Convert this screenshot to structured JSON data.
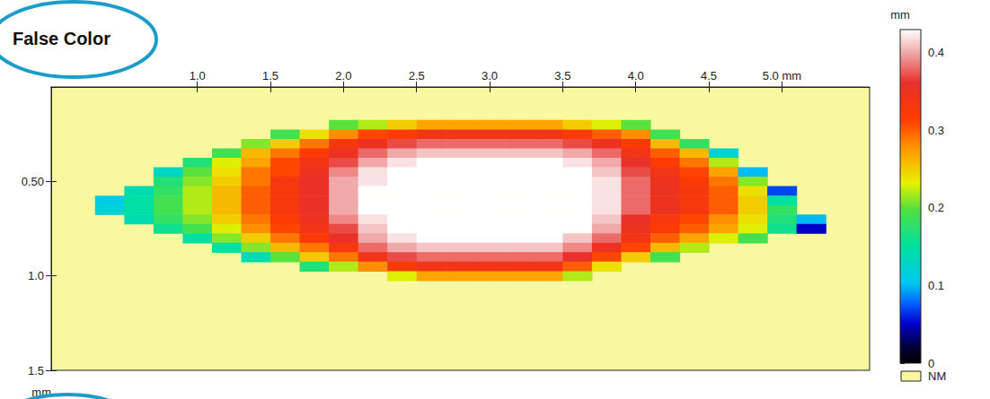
{
  "chart_data": {
    "type": "heatmap",
    "title": "False Color",
    "x": [
      0.4,
      0.6,
      0.8,
      1.0,
      1.2,
      1.4,
      1.6,
      1.8,
      2.0,
      2.2,
      2.4,
      2.6,
      2.8,
      3.0,
      3.2,
      3.4,
      3.6,
      3.8,
      4.0,
      4.2,
      4.4,
      4.6,
      4.8,
      5.0,
      5.2
    ],
    "y": [
      0.2,
      0.25,
      0.3,
      0.35,
      0.4,
      0.45,
      0.5,
      0.55,
      0.6,
      0.65,
      0.7,
      0.75,
      0.8,
      0.85,
      0.9,
      0.95,
      1.0
    ],
    "z": [
      [
        null,
        null,
        null,
        null,
        null,
        null,
        null,
        null,
        0.2,
        0.22,
        0.25,
        0.27,
        0.27,
        0.27,
        0.27,
        0.27,
        0.25,
        0.23,
        0.2,
        null,
        null,
        null,
        null,
        null,
        null
      ],
      [
        null,
        null,
        null,
        null,
        null,
        null,
        0.19,
        0.24,
        0.28,
        0.31,
        0.32,
        0.34,
        0.34,
        0.34,
        0.34,
        0.34,
        0.32,
        0.3,
        0.28,
        0.19,
        null,
        null,
        null,
        null,
        null
      ],
      [
        null,
        null,
        null,
        null,
        null,
        0.21,
        0.25,
        0.29,
        0.33,
        0.35,
        0.37,
        0.38,
        0.38,
        0.38,
        0.38,
        0.38,
        0.37,
        0.35,
        0.32,
        0.26,
        0.18,
        null,
        null,
        null,
        null
      ],
      [
        null,
        null,
        null,
        null,
        0.19,
        0.26,
        0.29,
        0.32,
        0.35,
        0.38,
        0.4,
        0.41,
        0.41,
        0.41,
        0.41,
        0.41,
        0.4,
        0.38,
        0.34,
        0.3,
        0.26,
        0.12,
        null,
        null,
        null
      ],
      [
        null,
        null,
        null,
        0.17,
        0.23,
        0.27,
        0.31,
        0.34,
        0.37,
        0.4,
        0.42,
        0.43,
        0.43,
        0.43,
        0.43,
        0.43,
        0.42,
        0.4,
        0.36,
        0.32,
        0.29,
        0.22,
        null,
        null,
        null
      ],
      [
        null,
        null,
        0.13,
        0.2,
        0.24,
        0.29,
        0.31,
        0.35,
        0.39,
        0.42,
        0.43,
        0.44,
        0.44,
        0.44,
        0.44,
        0.44,
        0.43,
        0.41,
        0.37,
        0.34,
        0.31,
        0.27,
        0.1,
        null,
        null
      ],
      [
        null,
        null,
        0.17,
        0.21,
        0.25,
        0.29,
        0.33,
        0.36,
        0.4,
        0.42,
        0.44,
        0.45,
        0.45,
        0.45,
        0.46,
        0.45,
        0.44,
        0.42,
        0.38,
        0.35,
        0.32,
        0.29,
        0.21,
        null,
        null
      ],
      [
        null,
        0.14,
        0.18,
        0.22,
        0.26,
        0.3,
        0.33,
        0.36,
        0.4,
        0.43,
        0.45,
        0.46,
        0.46,
        0.46,
        0.46,
        0.46,
        0.45,
        0.42,
        0.38,
        0.35,
        0.33,
        0.3,
        0.24,
        0.07,
        null
      ],
      [
        0.11,
        0.15,
        0.19,
        0.22,
        0.26,
        0.3,
        0.33,
        0.36,
        0.4,
        0.43,
        0.45,
        0.46,
        0.47,
        0.46,
        0.46,
        0.46,
        0.45,
        0.42,
        0.38,
        0.35,
        0.33,
        0.3,
        0.25,
        0.15,
        null
      ],
      [
        0.12,
        0.15,
        0.19,
        0.22,
        0.26,
        0.3,
        0.33,
        0.36,
        0.4,
        0.43,
        0.45,
        0.46,
        0.46,
        0.46,
        0.46,
        0.46,
        0.45,
        0.42,
        0.38,
        0.35,
        0.33,
        0.3,
        0.25,
        0.18,
        null
      ],
      [
        null,
        0.14,
        0.18,
        0.21,
        0.25,
        0.29,
        0.32,
        0.35,
        0.39,
        0.42,
        0.44,
        0.45,
        0.45,
        0.45,
        0.45,
        0.45,
        0.44,
        0.41,
        0.36,
        0.33,
        0.31,
        0.28,
        0.24,
        0.17,
        0.1
      ],
      [
        null,
        null,
        0.16,
        0.19,
        0.23,
        0.28,
        0.31,
        0.34,
        0.37,
        0.41,
        0.43,
        0.44,
        0.44,
        0.44,
        0.44,
        0.44,
        0.43,
        0.4,
        0.35,
        0.32,
        0.3,
        0.27,
        0.23,
        0.16,
        0.05
      ],
      [
        null,
        null,
        null,
        0.15,
        0.21,
        0.25,
        0.29,
        0.32,
        0.36,
        0.4,
        0.42,
        0.43,
        0.43,
        0.43,
        0.43,
        0.43,
        0.41,
        0.38,
        0.34,
        0.3,
        0.27,
        0.23,
        0.19,
        null,
        null
      ],
      [
        null,
        null,
        null,
        null,
        0.15,
        0.21,
        0.26,
        0.29,
        0.33,
        0.38,
        0.4,
        0.41,
        0.41,
        0.41,
        0.41,
        0.41,
        0.39,
        0.35,
        0.31,
        0.26,
        0.22,
        null,
        null,
        null,
        null
      ],
      [
        null,
        null,
        null,
        null,
        null,
        0.14,
        0.2,
        0.25,
        0.29,
        0.34,
        0.37,
        0.38,
        0.38,
        0.38,
        0.38,
        0.38,
        0.36,
        0.31,
        0.25,
        0.19,
        null,
        null,
        null,
        null,
        null
      ],
      [
        null,
        null,
        null,
        null,
        null,
        null,
        null,
        0.17,
        0.22,
        0.28,
        0.32,
        0.34,
        0.34,
        0.34,
        0.34,
        0.34,
        0.3,
        0.24,
        null,
        null,
        null,
        null,
        null,
        null,
        null
      ],
      [
        null,
        null,
        null,
        null,
        null,
        null,
        null,
        null,
        null,
        null,
        0.23,
        0.27,
        0.27,
        0.27,
        0.27,
        0.27,
        0.22,
        null,
        null,
        null,
        null,
        null,
        null,
        null,
        null
      ]
    ],
    "xlim": [
      0,
      5.6
    ],
    "xticks": [
      {
        "value": 1,
        "label": "1.0"
      },
      1.5,
      {
        "value": 2,
        "label": "2.0"
      },
      2.5,
      {
        "value": 3,
        "label": "3.0"
      },
      3.5,
      {
        "value": 4,
        "label": "4.0"
      },
      4.5,
      {
        "value": 5,
        "label": "5.0 mm"
      }
    ],
    "ylim": [
      0,
      1.5
    ],
    "yticks": [
      {
        "value": 0.5,
        "label": "0.50"
      },
      {
        "value": 1,
        "label": "1.0"
      },
      1.5
    ],
    "y_label": "mm",
    "colorbar": {
      "range": [
        0,
        0.43
      ],
      "ticks": [
        0,
        0.1,
        0.2,
        0.3,
        0.4
      ],
      "label": "mm",
      "missing_label": "NM"
    }
  }
}
